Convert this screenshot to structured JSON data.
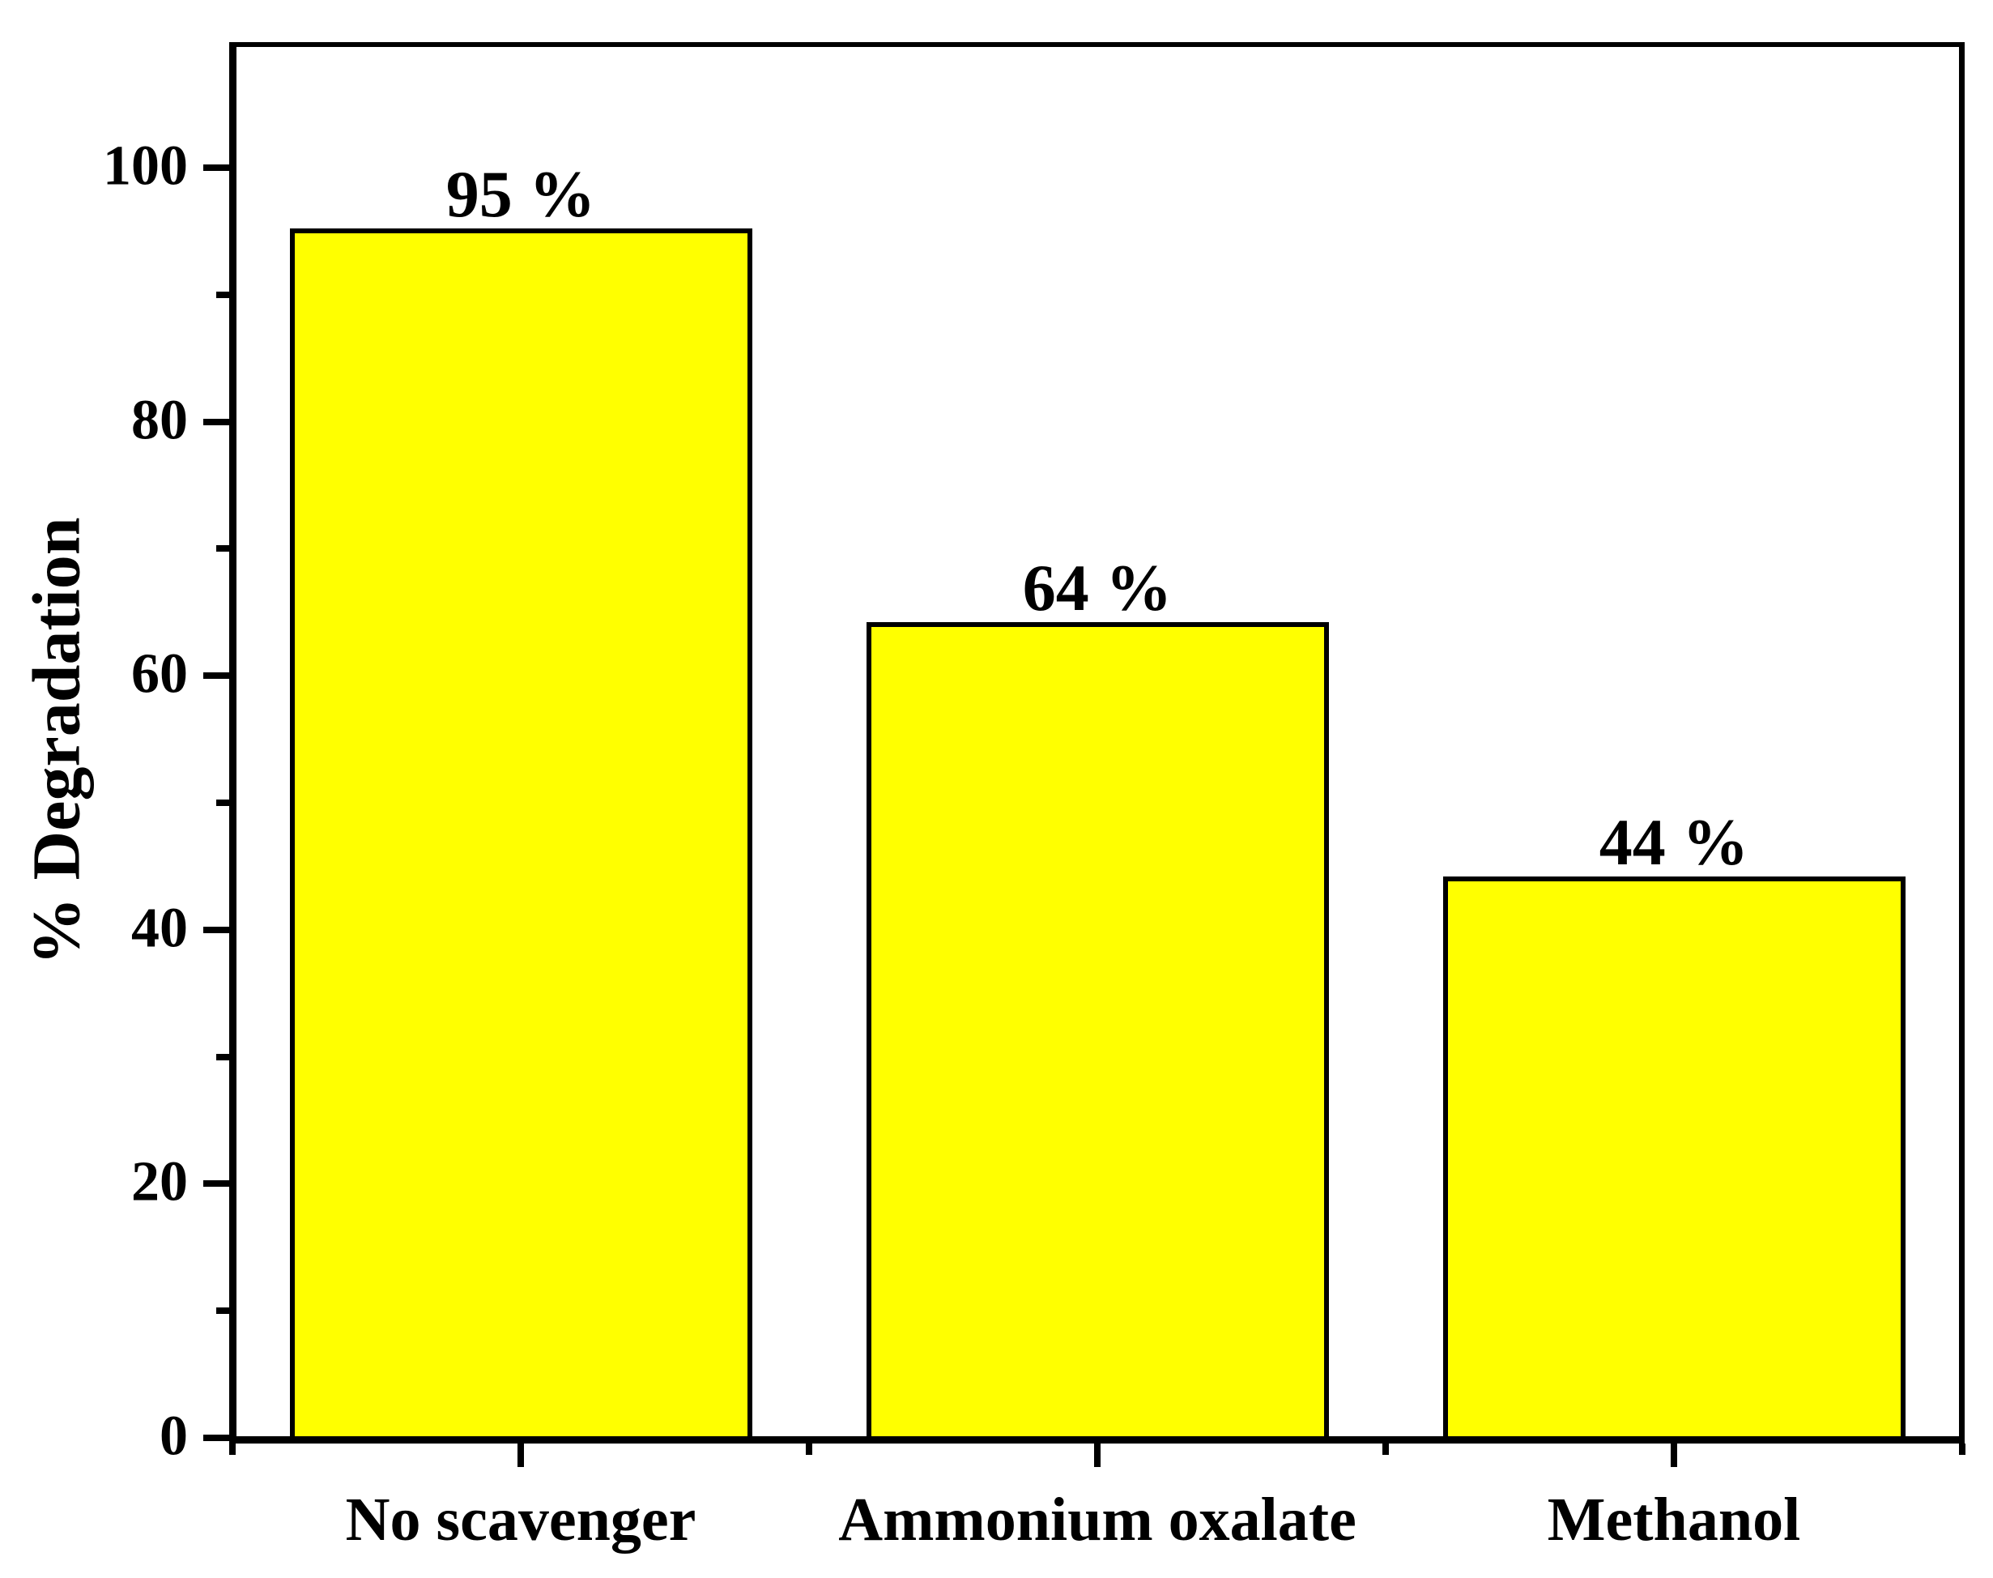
{
  "figure": {
    "background_color": "#ffffff",
    "line_color": "#000000",
    "bar_fill_color": "#ffff00"
  },
  "chart_data": {
    "type": "bar",
    "title": "",
    "categories": [
      "No scavenger",
      "Ammonium oxalate",
      "Methanol"
    ],
    "values": [
      95,
      64,
      44
    ],
    "bar_labels": [
      "95 %",
      "64 %",
      "44 %"
    ],
    "xlabel": "",
    "ylabel": "% Degradation",
    "y_major_ticks": [
      0,
      20,
      40,
      60,
      80,
      100
    ],
    "y_minor_ticks": [
      10,
      30,
      50,
      70,
      90
    ],
    "ylim": [
      0,
      110
    ],
    "grid": false,
    "legend_position": "none",
    "bar_color": "#ffff00",
    "bar_border_color": "#000000",
    "axis_color": "#000000"
  }
}
